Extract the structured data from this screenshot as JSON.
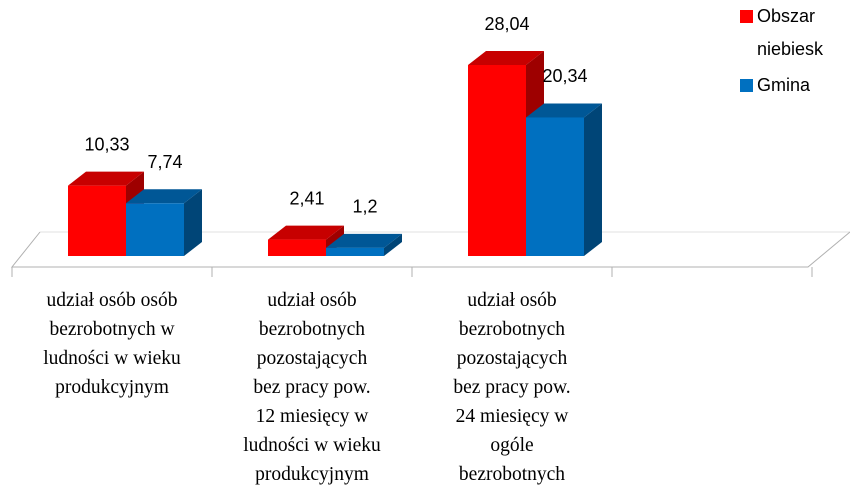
{
  "chart_data": {
    "type": "bar3d",
    "categories": [
      "udział osób osób\nbezrobotnych w\nludności w wieku\nprodukcyjnym",
      "udział osób\nbezrobotnych\npozostających\nbez pracy pow.\n12 miesięcy w\nludności w wieku\nprodukcyjnym",
      "udział osób\nbezrobotnych\npozostających\nbez pracy pow.\n24 miesięcy w\nogóle\nbezrobotnych",
      null
    ],
    "series": [
      {
        "name": "Obszar\nniebiesk",
        "color": "#ff0000",
        "values": [
          10.33,
          2.41,
          28.04,
          null
        ],
        "value_labels": [
          "10,33",
          "2,41",
          "28,04",
          null
        ]
      },
      {
        "name": "Gmina",
        "color": "#0070c0",
        "values": [
          7.74,
          1.2,
          20.34,
          null
        ],
        "value_labels": [
          "7,74",
          "1,2",
          "20,34",
          null
        ]
      }
    ],
    "legend": "top-right"
  }
}
